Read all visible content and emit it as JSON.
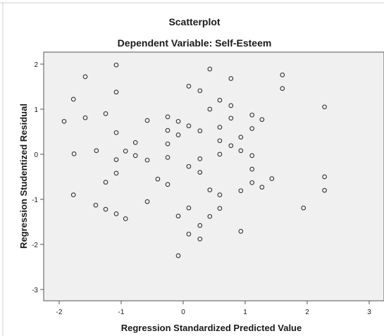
{
  "chart_data": {
    "type": "scatter",
    "title": "Scatterplot",
    "subtitle": "Dependent Variable: Self-Esteem",
    "xlabel": "Regression Standardized Predicted Value",
    "ylabel": "Regression Studentized Residual",
    "xlim": [
      -2.3,
      3.2
    ],
    "ylim": [
      -3.3,
      2.3
    ],
    "xticks": [
      "-2",
      "-1",
      "0",
      "1",
      "2",
      "3"
    ],
    "yticks": [
      "2",
      "1",
      "0",
      "-1",
      "-2",
      "-3"
    ],
    "grid": false,
    "colors": {
      "plot_bg": "#f0f0f0",
      "marker_stroke": "#333333",
      "frame": "#555555"
    },
    "points": [
      [
        -1.92,
        0.73
      ],
      [
        -1.77,
        1.22
      ],
      [
        -1.76,
        0.01
      ],
      [
        -1.77,
        -0.9
      ],
      [
        -1.58,
        1.72
      ],
      [
        -1.58,
        0.81
      ],
      [
        -1.4,
        0.08
      ],
      [
        -1.41,
        -1.13
      ],
      [
        -1.25,
        0.9
      ],
      [
        -1.25,
        -0.62
      ],
      [
        -1.25,
        -1.22
      ],
      [
        -1.08,
        1.98
      ],
      [
        -1.08,
        1.38
      ],
      [
        -1.08,
        0.48
      ],
      [
        -1.08,
        -0.12
      ],
      [
        -1.08,
        -0.42
      ],
      [
        -1.08,
        -1.32
      ],
      [
        -0.93,
        0.07
      ],
      [
        -0.93,
        -1.43
      ],
      [
        -0.77,
        0.26
      ],
      [
        -0.77,
        -0.03
      ],
      [
        -0.58,
        0.75
      ],
      [
        -0.58,
        -0.13
      ],
      [
        -0.58,
        -1.05
      ],
      [
        -0.41,
        -0.55
      ],
      [
        -0.25,
        0.83
      ],
      [
        -0.25,
        0.53
      ],
      [
        -0.25,
        0.23
      ],
      [
        -0.25,
        -0.07
      ],
      [
        -0.25,
        -0.67
      ],
      [
        -0.08,
        0.73
      ],
      [
        -0.08,
        0.43
      ],
      [
        -0.08,
        -1.37
      ],
      [
        -0.08,
        -2.25
      ],
      [
        0.09,
        1.51
      ],
      [
        0.09,
        0.63
      ],
      [
        0.09,
        -0.27
      ],
      [
        0.09,
        -1.19
      ],
      [
        0.09,
        -1.77
      ],
      [
        0.27,
        1.41
      ],
      [
        0.27,
        0.52
      ],
      [
        0.27,
        -0.1
      ],
      [
        0.27,
        -0.4
      ],
      [
        0.27,
        -1.58
      ],
      [
        0.27,
        -1.88
      ],
      [
        0.43,
        1.89
      ],
      [
        0.43,
        1.0
      ],
      [
        0.43,
        -0.79
      ],
      [
        0.43,
        -1.38
      ],
      [
        0.59,
        1.2
      ],
      [
        0.59,
        0.6
      ],
      [
        0.59,
        0.3
      ],
      [
        0.59,
        0.0
      ],
      [
        0.59,
        -0.9
      ],
      [
        0.59,
        -1.2
      ],
      [
        0.77,
        1.68
      ],
      [
        0.77,
        1.08
      ],
      [
        0.77,
        0.8
      ],
      [
        0.77,
        0.19
      ],
      [
        0.93,
        0.38
      ],
      [
        0.93,
        0.08
      ],
      [
        0.93,
        -0.81
      ],
      [
        0.93,
        -1.71
      ],
      [
        1.11,
        0.87
      ],
      [
        1.11,
        0.57
      ],
      [
        1.11,
        -0.03
      ],
      [
        1.11,
        -0.33
      ],
      [
        1.11,
        -0.63
      ],
      [
        1.27,
        0.77
      ],
      [
        1.27,
        -0.73
      ],
      [
        1.43,
        -0.54
      ],
      [
        1.6,
        1.76
      ],
      [
        1.6,
        1.46
      ],
      [
        1.94,
        -1.19
      ],
      [
        2.28,
        1.05
      ],
      [
        2.28,
        -0.5
      ],
      [
        2.28,
        -0.8
      ]
    ]
  }
}
